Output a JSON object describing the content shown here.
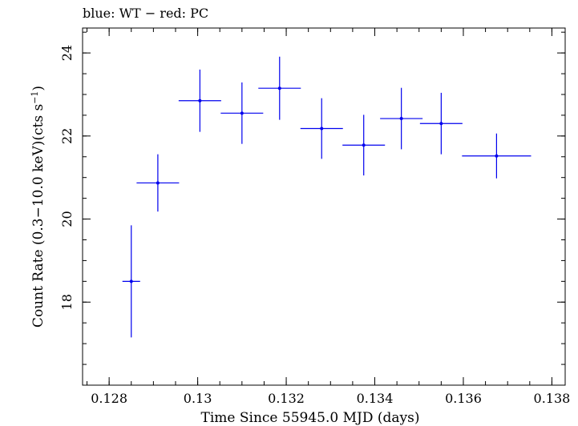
{
  "chart_data": {
    "type": "scatter",
    "title": "blue: WT − red: PC",
    "xlabel": "Time Since 55945.0 MJD (days)",
    "ylabel_main": "Count Rate (0.3−10.0 keV)(cts s",
    "ylabel_sup": "−1",
    "ylabel_end": ")",
    "xlim": [
      0.1274,
      0.1383
    ],
    "ylim": [
      16.0,
      24.6
    ],
    "x_ticks": [
      0.128,
      0.13,
      0.132,
      0.134,
      0.136,
      0.138
    ],
    "x_tick_labels": [
      "0.128",
      "0.13",
      "0.132",
      "0.134",
      "0.136",
      "0.138"
    ],
    "y_ticks": [
      18,
      20,
      22,
      24
    ],
    "y_tick_labels": [
      "18",
      "20",
      "22",
      "24"
    ],
    "grid": false,
    "series": [
      {
        "name": "WT",
        "color": "#0000ee",
        "points": [
          {
            "x": 0.1285,
            "y": 18.5,
            "xerr": 0.0002,
            "yerr": 1.35
          },
          {
            "x": 0.1291,
            "y": 20.87,
            "xerr": 0.00048,
            "yerr": 0.69
          },
          {
            "x": 0.13005,
            "y": 22.85,
            "xerr": 0.00048,
            "yerr": 0.75
          },
          {
            "x": 0.131,
            "y": 22.55,
            "xerr": 0.00048,
            "yerr": 0.74
          },
          {
            "x": 0.13185,
            "y": 23.15,
            "xerr": 0.00048,
            "yerr": 0.76
          },
          {
            "x": 0.1328,
            "y": 22.18,
            "xerr": 0.00048,
            "yerr": 0.73
          },
          {
            "x": 0.13375,
            "y": 21.78,
            "xerr": 0.00048,
            "yerr": 0.73
          },
          {
            "x": 0.1346,
            "y": 22.42,
            "xerr": 0.00048,
            "yerr": 0.74
          },
          {
            "x": 0.1355,
            "y": 22.3,
            "xerr": 0.00048,
            "yerr": 0.74
          },
          {
            "x": 0.13675,
            "y": 21.52,
            "xerr": 0.00078,
            "yerr": 0.54
          }
        ]
      }
    ]
  }
}
